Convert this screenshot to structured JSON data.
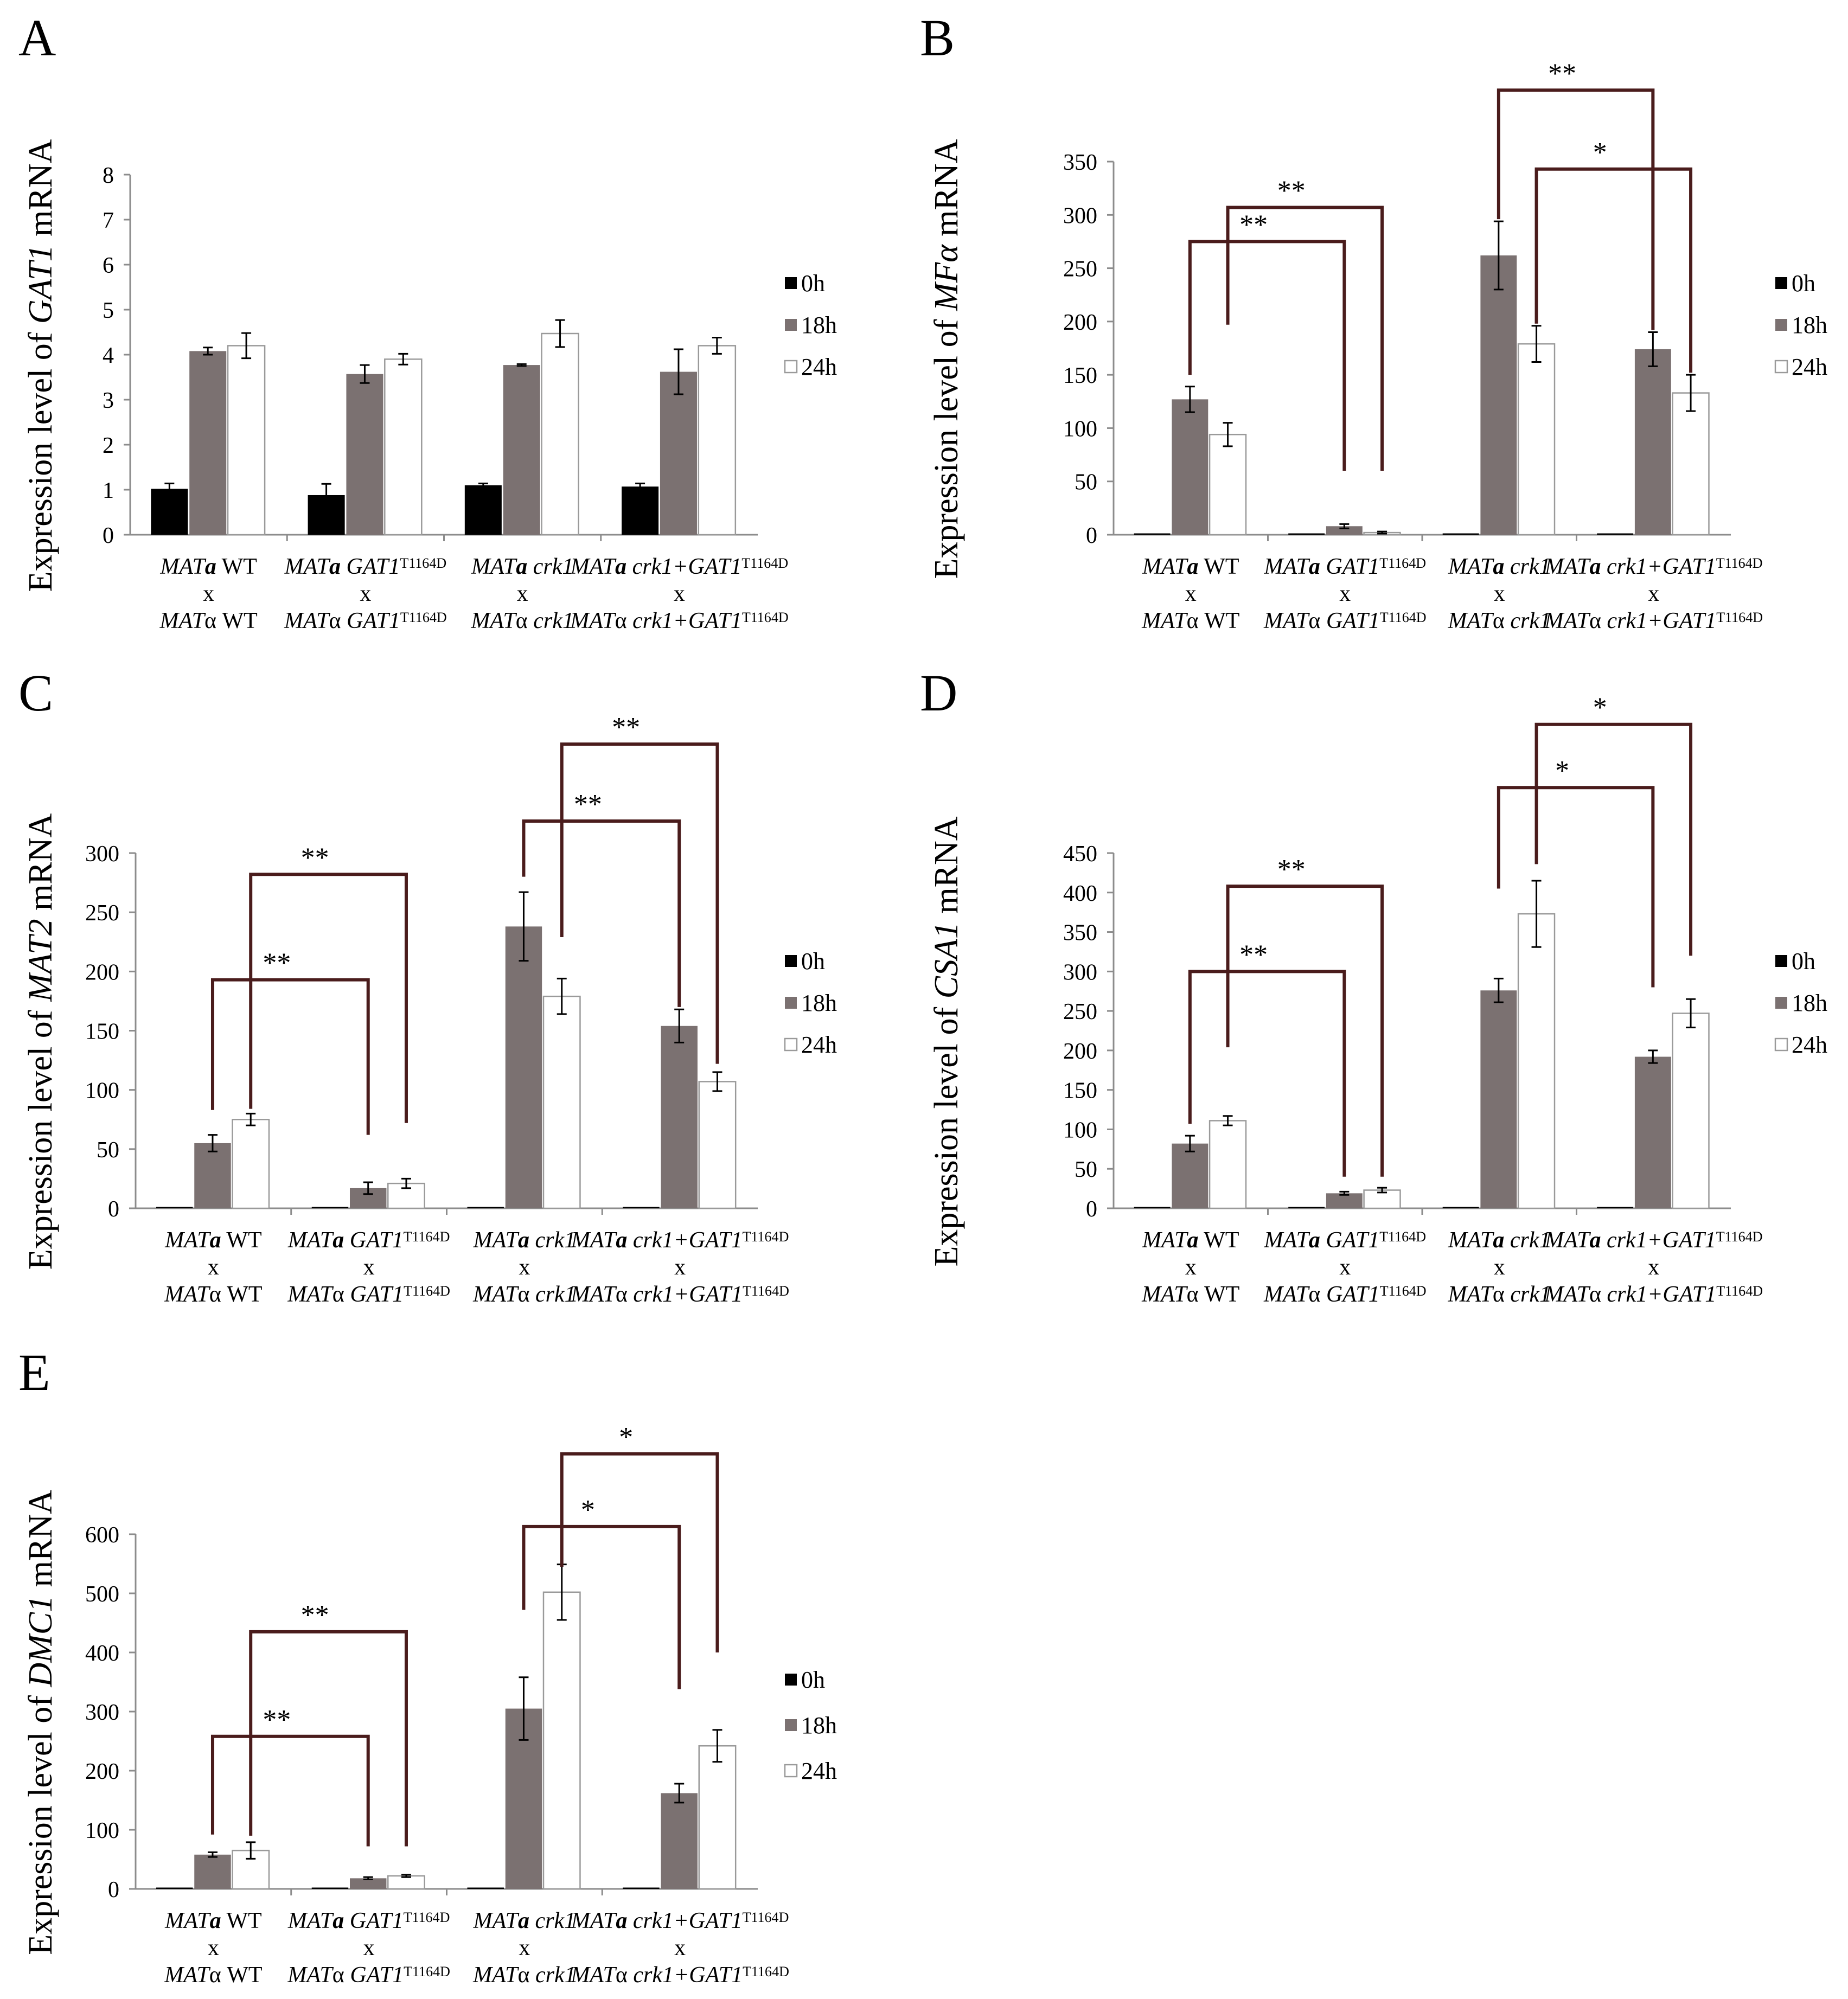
{
  "legend": {
    "labels": [
      "0h",
      "18h",
      "24h"
    ],
    "colors": [
      "#000000",
      "#7b7171",
      "#ffffff"
    ]
  },
  "groups": [
    {
      "line1": [
        {
          "t": "MAT"
        },
        {
          "t": "a",
          "b": true
        },
        {
          "t": " WT",
          "n": true
        }
      ],
      "line2": "x",
      "line3": [
        {
          "t": "MAT"
        },
        {
          "t": "α",
          "n": true
        },
        {
          "t": " WT",
          "n": true
        }
      ]
    },
    {
      "line1": [
        {
          "t": "MAT"
        },
        {
          "t": "a",
          "b": true
        },
        {
          "t": " GAT1"
        },
        {
          "t": "T1164D",
          "sup": true
        }
      ],
      "line2": "x",
      "line3": [
        {
          "t": "MAT"
        },
        {
          "t": "α",
          "n": true
        },
        {
          "t": " GAT1"
        },
        {
          "t": "T1164D",
          "sup": true
        }
      ]
    },
    {
      "line1": [
        {
          "t": "MAT"
        },
        {
          "t": "a",
          "b": true
        },
        {
          "t": " crk1"
        }
      ],
      "line2": "x",
      "line3": [
        {
          "t": "MAT"
        },
        {
          "t": "α",
          "n": true
        },
        {
          "t": " crk1"
        }
      ]
    },
    {
      "line1": [
        {
          "t": "MAT"
        },
        {
          "t": "a",
          "b": true
        },
        {
          "t": " crk1+GAT1"
        },
        {
          "t": "T1164D",
          "sup": true
        }
      ],
      "line2": "x",
      "line3": [
        {
          "t": "MAT"
        },
        {
          "t": "α",
          "n": true
        },
        {
          "t": " crk1+GAT1"
        },
        {
          "t": "T1164D",
          "sup": true
        }
      ]
    }
  ],
  "chart_data": [
    {
      "type": "bar",
      "panel": "A",
      "ylabel": [
        {
          "t": "Expression level of ",
          "n": true
        },
        {
          "t": "GAT1"
        },
        {
          "t": " mRNA",
          "n": true
        }
      ],
      "ylim": [
        0,
        8
      ],
      "yticks": [
        0,
        1,
        2,
        3,
        4,
        5,
        6,
        7,
        8
      ],
      "series": [
        {
          "name": "0h",
          "values": [
            1.02,
            0.88,
            1.1,
            1.07
          ],
          "errors": [
            0.12,
            0.25,
            0.04,
            0.07
          ]
        },
        {
          "name": "18h",
          "values": [
            4.08,
            3.57,
            3.77,
            3.62
          ],
          "errors": [
            0.08,
            0.2,
            0.02,
            0.5
          ]
        },
        {
          "name": "24h",
          "values": [
            4.2,
            3.9,
            4.47,
            4.2
          ],
          "errors": [
            0.28,
            0.12,
            0.3,
            0.18
          ]
        }
      ],
      "significance": []
    },
    {
      "type": "bar",
      "panel": "B",
      "ylabel": [
        {
          "t": "Expression level of ",
          "n": true
        },
        {
          "t": "MFα"
        },
        {
          "t": " mRNA",
          "n": true
        }
      ],
      "ylim": [
        0,
        350
      ],
      "yticks": [
        0,
        50,
        100,
        150,
        200,
        250,
        300,
        350
      ],
      "series": [
        {
          "name": "0h",
          "values": [
            0.5,
            0.5,
            0.5,
            0.5
          ],
          "errors": [
            0,
            0,
            0,
            0
          ]
        },
        {
          "name": "18h",
          "values": [
            127,
            8,
            262,
            174
          ],
          "errors": [
            12,
            2,
            32,
            16
          ]
        },
        {
          "name": "24h",
          "values": [
            94,
            2,
            179,
            133
          ],
          "errors": [
            11,
            1,
            17,
            17
          ]
        }
      ],
      "significance": [
        {
          "label": "**",
          "from": [
            0,
            1
          ],
          "to": [
            1,
            1
          ],
          "bracket": 275,
          "leg1": 150,
          "leg2": 60
        },
        {
          "label": "**",
          "from": [
            0,
            2
          ],
          "to": [
            1,
            2
          ],
          "bracket": 307,
          "leg1": 197,
          "leg2": 60
        },
        {
          "label": "**",
          "from": [
            2,
            1
          ],
          "to": [
            3,
            1
          ],
          "bracket": 417,
          "leg1": 296,
          "leg2": 192
        },
        {
          "label": "*",
          "from": [
            2,
            2
          ],
          "to": [
            3,
            2
          ],
          "bracket": 343,
          "leg1": 198,
          "leg2": 152
        }
      ]
    },
    {
      "type": "bar",
      "panel": "C",
      "ylabel": [
        {
          "t": "Expression level of ",
          "n": true
        },
        {
          "t": "MAT2"
        },
        {
          "t": " mRNA",
          "n": true
        }
      ],
      "ylim": [
        0,
        300
      ],
      "yticks": [
        0,
        50,
        100,
        150,
        200,
        250,
        300
      ],
      "series": [
        {
          "name": "0h",
          "values": [
            0.5,
            0.5,
            0.5,
            0.5
          ],
          "errors": [
            0,
            0,
            0,
            0
          ]
        },
        {
          "name": "18h",
          "values": [
            55,
            17,
            238,
            154
          ],
          "errors": [
            7,
            5,
            29,
            14
          ]
        },
        {
          "name": "24h",
          "values": [
            75,
            21,
            179,
            107
          ],
          "errors": [
            5,
            4,
            15,
            8
          ]
        }
      ],
      "significance": [
        {
          "label": "**",
          "from": [
            0,
            1
          ],
          "to": [
            1,
            1
          ],
          "bracket": 193,
          "leg1": 83,
          "leg2": 62
        },
        {
          "label": "**",
          "from": [
            0,
            2
          ],
          "to": [
            1,
            2
          ],
          "bracket": 282,
          "leg1": 84,
          "leg2": 72
        },
        {
          "label": "**",
          "from": [
            2,
            1
          ],
          "to": [
            3,
            1
          ],
          "bracket": 327,
          "leg1": 280,
          "leg2": 170
        },
        {
          "label": "**",
          "from": [
            2,
            2
          ],
          "to": [
            3,
            2
          ],
          "bracket": 392,
          "leg1": 229,
          "leg2": 122
        }
      ]
    },
    {
      "type": "bar",
      "panel": "D",
      "ylabel": [
        {
          "t": "Expression level of ",
          "n": true
        },
        {
          "t": "CSA1"
        },
        {
          "t": " mRNA",
          "n": true
        }
      ],
      "ylim": [
        0,
        450
      ],
      "yticks": [
        0,
        50,
        100,
        150,
        200,
        250,
        300,
        350,
        400,
        450
      ],
      "series": [
        {
          "name": "0h",
          "values": [
            0.5,
            0.5,
            0.5,
            0.5
          ],
          "errors": [
            0,
            0,
            0,
            0
          ]
        },
        {
          "name": "18h",
          "values": [
            82,
            19,
            276,
            192
          ],
          "errors": [
            10,
            2,
            15,
            8
          ]
        },
        {
          "name": "24h",
          "values": [
            111,
            23,
            373,
            247
          ],
          "errors": [
            6,
            3,
            42,
            18
          ]
        }
      ],
      "significance": [
        {
          "label": "**",
          "from": [
            0,
            1
          ],
          "to": [
            1,
            1
          ],
          "bracket": 300,
          "leg1": 107,
          "leg2": 40
        },
        {
          "label": "**",
          "from": [
            0,
            2
          ],
          "to": [
            1,
            2
          ],
          "bracket": 408,
          "leg1": 204,
          "leg2": 40
        },
        {
          "label": "*",
          "from": [
            2,
            1
          ],
          "to": [
            3,
            1
          ],
          "bracket": 533,
          "leg1": 405,
          "leg2": 280
        },
        {
          "label": "*",
          "from": [
            2,
            2
          ],
          "to": [
            3,
            2
          ],
          "bracket": 613,
          "leg1": 436,
          "leg2": 320
        }
      ]
    },
    {
      "type": "bar",
      "panel": "E",
      "ylabel": [
        {
          "t": "Expression level of ",
          "n": true
        },
        {
          "t": "DMC1"
        },
        {
          "t": " mRNA",
          "n": true
        }
      ],
      "ylim": [
        0,
        600
      ],
      "yticks": [
        0,
        100,
        200,
        300,
        400,
        500,
        600
      ],
      "series": [
        {
          "name": "0h",
          "values": [
            1,
            1,
            1,
            1
          ],
          "errors": [
            0,
            0,
            0,
            0
          ]
        },
        {
          "name": "18h",
          "values": [
            58,
            18,
            305,
            162
          ],
          "errors": [
            4,
            2,
            53,
            16
          ]
        },
        {
          "name": "24h",
          "values": [
            65,
            22,
            502,
            242
          ],
          "errors": [
            14,
            2,
            47,
            27
          ]
        }
      ],
      "significance": [
        {
          "label": "**",
          "from": [
            0,
            1
          ],
          "to": [
            1,
            1
          ],
          "bracket": 258,
          "leg1": 92,
          "leg2": 72
        },
        {
          "label": "**",
          "from": [
            0,
            2
          ],
          "to": [
            1,
            2
          ],
          "bracket": 435,
          "leg1": 90,
          "leg2": 72
        },
        {
          "label": "*",
          "from": [
            2,
            1
          ],
          "to": [
            3,
            1
          ],
          "bracket": 613,
          "leg1": 472,
          "leg2": 338
        },
        {
          "label": "*",
          "from": [
            2,
            2
          ],
          "to": [
            3,
            2
          ],
          "bracket": 736,
          "leg1": 545,
          "leg2": 400
        }
      ]
    }
  ]
}
